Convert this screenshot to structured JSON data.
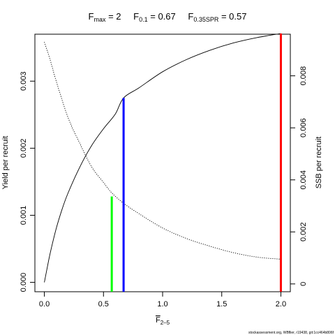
{
  "chart_data": {
    "type": "line",
    "title": {
      "fmax": {
        "main": "F",
        "sub": "max",
        "rest": " = 2"
      },
      "f01": {
        "main": "F",
        "sub": "0.1",
        "rest": " = 0.67"
      },
      "fspr": {
        "main": "F",
        "sub": "0.35SPR",
        "rest": " = 0.57"
      }
    },
    "xlabel": {
      "main": "F",
      "sub": "2–5"
    },
    "ylabel_left": "Yield per recruit",
    "ylabel_right": "SSB per recruit",
    "xlim": [
      -0.08,
      2.08
    ],
    "ylim_left": [
      -0.00014,
      0.0037
    ],
    "ylim_right": [
      -0.0003,
      0.0096
    ],
    "x_ticks": [
      {
        "value": 0.0,
        "label": "0.0"
      },
      {
        "value": 0.5,
        "label": "0.5"
      },
      {
        "value": 1.0,
        "label": "1.0"
      },
      {
        "value": 1.5,
        "label": "1.5"
      },
      {
        "value": 2.0,
        "label": "2.0"
      }
    ],
    "y_left_ticks": [
      {
        "value": 0.0,
        "label": "0.000"
      },
      {
        "value": 0.001,
        "label": "0.001"
      },
      {
        "value": 0.002,
        "label": "0.002"
      },
      {
        "value": 0.003,
        "label": "0.003"
      }
    ],
    "y_right_ticks": [
      {
        "value": 0.0,
        "label": "0"
      },
      {
        "value": 0.002,
        "label": "0.002"
      },
      {
        "value": 0.004,
        "label": "0.004"
      },
      {
        "value": 0.006,
        "label": "0.006"
      },
      {
        "value": 0.008,
        "label": "0.008"
      }
    ],
    "series": [
      {
        "name": "Yield per recruit",
        "axis": "left",
        "style": "solid",
        "color": "#000000",
        "x": [
          0.0,
          0.02,
          0.05,
          0.1,
          0.15,
          0.2,
          0.3,
          0.4,
          0.5,
          0.6,
          0.67,
          0.8,
          1.0,
          1.2,
          1.4,
          1.6,
          1.8,
          2.0
        ],
        "y": [
          0.0,
          0.00018,
          0.00044,
          0.0008,
          0.00109,
          0.00133,
          0.00172,
          0.00204,
          0.00229,
          0.00251,
          0.00275,
          0.0029,
          0.00314,
          0.00332,
          0.00346,
          0.00357,
          0.00365,
          0.00371
        ]
      },
      {
        "name": "SSB per recruit",
        "axis": "right",
        "style": "dotted",
        "color": "#000000",
        "x": [
          0.0,
          0.05,
          0.1,
          0.2,
          0.3,
          0.4,
          0.5,
          0.57,
          0.67,
          0.8,
          1.0,
          1.2,
          1.4,
          1.6,
          1.8,
          2.0
        ],
        "y": [
          0.0093,
          0.0086,
          0.0078,
          0.0064,
          0.0054,
          0.0045,
          0.0039,
          0.0035,
          0.0031,
          0.0027,
          0.00215,
          0.00175,
          0.00145,
          0.0012,
          0.00103,
          0.00095
        ]
      }
    ],
    "reference_lines": [
      {
        "name": "F0.35SPR",
        "x": 0.57,
        "y_top": 0.00128,
        "color": "#00ff00"
      },
      {
        "name": "F0.1",
        "x": 0.67,
        "y_top": 0.00275,
        "color": "#0000ff"
      },
      {
        "name": "Fmax",
        "x": 2.0,
        "y_top": 0.00371,
        "color": "#ff0000"
      }
    ],
    "grid": false,
    "legend": "none"
  },
  "footer": "stockassessment.org, WBflier, r19438, git:1cc464b806f"
}
